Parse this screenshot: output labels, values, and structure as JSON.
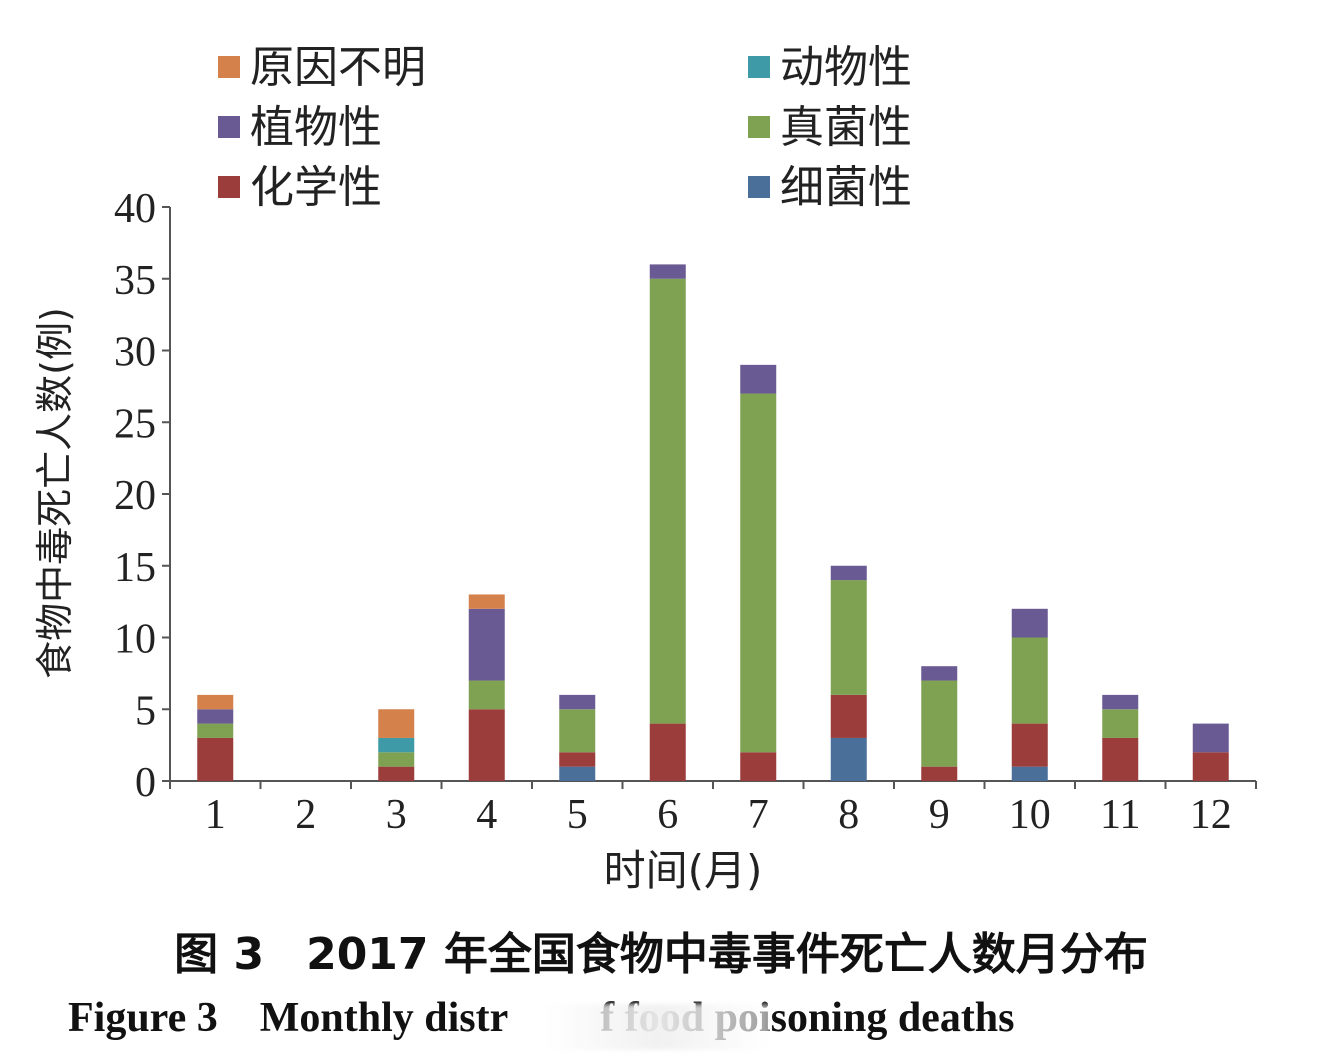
{
  "chart_data": {
    "type": "bar",
    "stacked": true,
    "categories": [
      "1",
      "2",
      "3",
      "4",
      "5",
      "6",
      "7",
      "8",
      "9",
      "10",
      "11",
      "12"
    ],
    "series": [
      {
        "name": "细菌性",
        "color": "#4a6f98",
        "values": [
          0,
          0,
          0,
          0,
          1,
          0,
          0,
          3,
          0,
          1,
          0,
          0
        ]
      },
      {
        "name": "化学性",
        "color": "#9b3d3b",
        "values": [
          3,
          0,
          1,
          5,
          1,
          4,
          2,
          3,
          1,
          3,
          3,
          2
        ]
      },
      {
        "name": "真菌性",
        "color": "#7fa152",
        "values": [
          1,
          0,
          1,
          2,
          3,
          31,
          25,
          8,
          6,
          6,
          2,
          0
        ]
      },
      {
        "name": "植物性",
        "color": "#6a5a93",
        "values": [
          1,
          0,
          0,
          5,
          1,
          1,
          2,
          1,
          1,
          2,
          1,
          2
        ]
      },
      {
        "name": "动物性",
        "color": "#3e9aa6",
        "values": [
          0,
          0,
          1,
          0,
          0,
          0,
          0,
          0,
          0,
          0,
          0,
          0
        ]
      },
      {
        "name": "原因不明",
        "color": "#d4814b",
        "values": [
          1,
          0,
          2,
          1,
          0,
          0,
          0,
          0,
          0,
          0,
          0,
          0
        ]
      }
    ],
    "legend_order": [
      "原因不明",
      "动物性",
      "植物性",
      "真菌性",
      "化学性",
      "细菌性"
    ],
    "legend_position": "top",
    "ylim": [
      0,
      40
    ],
    "yticks": [
      "0",
      "5",
      "10",
      "15",
      "20",
      "25",
      "30",
      "35",
      "40"
    ],
    "xlabel": "时间(月)",
    "ylabel": "食物中毒死亡人数(例)"
  },
  "caption": {
    "zh_label": "图 3",
    "zh_text": "2017 年全国食物中毒事件死亡人数月分布",
    "en_label": "Figure 3",
    "en_text_a": "Monthly distr",
    "en_text_b": "f food poisoning deaths"
  }
}
